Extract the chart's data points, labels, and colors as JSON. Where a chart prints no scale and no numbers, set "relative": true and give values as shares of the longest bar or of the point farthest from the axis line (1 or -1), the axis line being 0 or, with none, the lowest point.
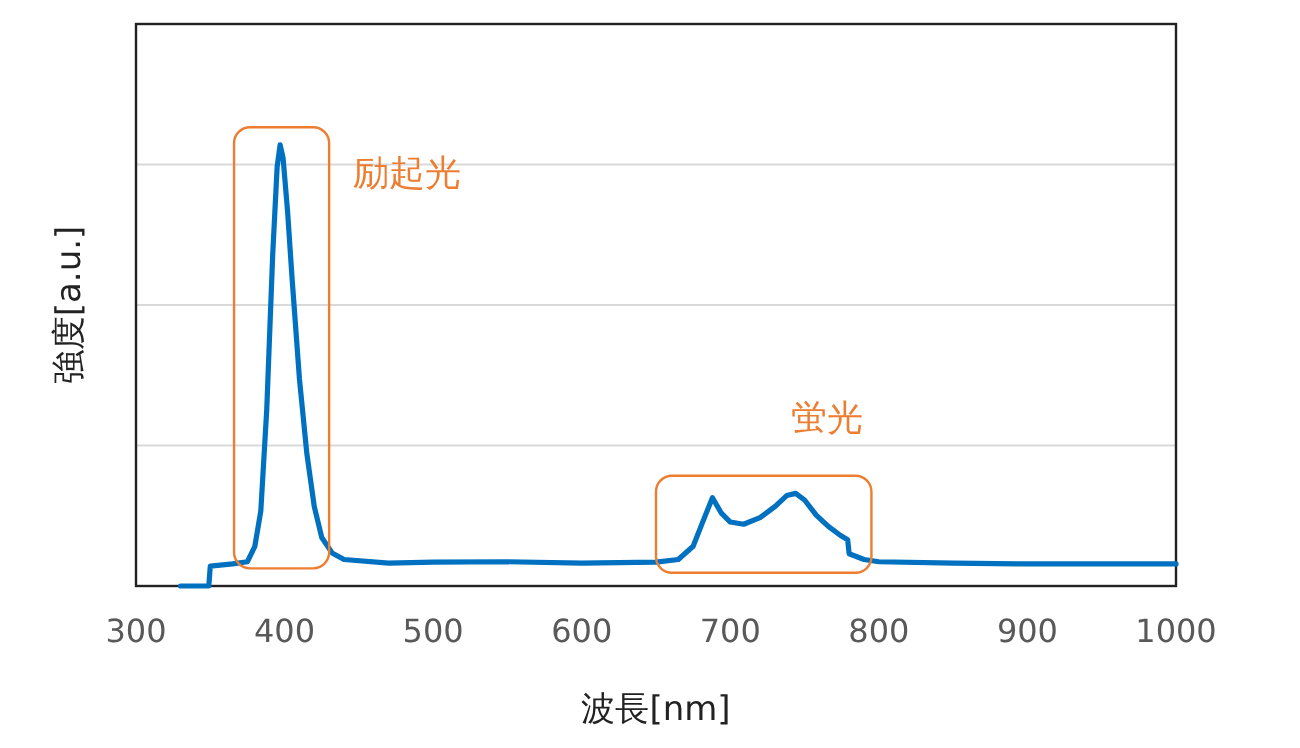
{
  "chart_data": {
    "type": "line",
    "relative": true,
    "xlabel": "波長[nm]",
    "ylabel": "強度[a.u.]",
    "xlim": [
      300,
      1000
    ],
    "xticks": [
      300,
      400,
      500,
      600,
      700,
      800,
      900,
      1000
    ],
    "grid": "y",
    "line_style": "solid",
    "series": [
      {
        "color": "#0070c0",
        "x": [
          330,
          349,
          350,
          365,
          375,
          380,
          384,
          388,
          392,
          395,
          397,
          399,
          402,
          405,
          410,
          415,
          420,
          425,
          432,
          440,
          470,
          500,
          550,
          600,
          650,
          665,
          675,
          682,
          688,
          694,
          700,
          709,
          720,
          730,
          738,
          744,
          750,
          758,
          766,
          774,
          779,
          780,
          790,
          800,
          850,
          900,
          950,
          1000
        ],
        "values": [
          0,
          0,
          0.045,
          0.05,
          0.055,
          0.09,
          0.17,
          0.4,
          0.75,
          0.95,
          1,
          0.97,
          0.85,
          0.7,
          0.47,
          0.3,
          0.18,
          0.11,
          0.075,
          0.06,
          0.052,
          0.054,
          0.055,
          0.052,
          0.054,
          0.06,
          0.09,
          0.15,
          0.2,
          0.165,
          0.145,
          0.14,
          0.155,
          0.18,
          0.205,
          0.21,
          0.195,
          0.16,
          0.135,
          0.115,
          0.105,
          0.073,
          0.06,
          0.055,
          0.052,
          0.05,
          0.05,
          0.05
        ]
      }
    ],
    "annotations": [
      "励起光",
      "蛍光"
    ]
  }
}
